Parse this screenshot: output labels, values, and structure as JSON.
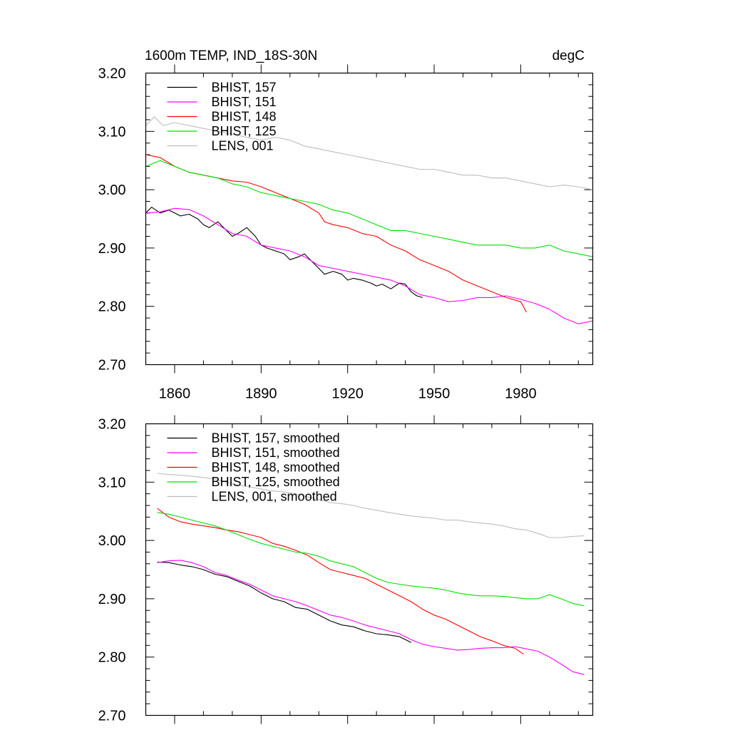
{
  "chart_data": [
    {
      "type": "line",
      "title": "1600m TEMP, IND_18S-30N",
      "units": "degC",
      "xlim": [
        1850,
        2005
      ],
      "ylim": [
        2.7,
        3.2
      ],
      "x_ticks": [
        1860,
        1890,
        1920,
        1950,
        1980
      ],
      "x_tick_labels": [
        "1860",
        "1890",
        "1920",
        "1950",
        "1980"
      ],
      "y_ticks": [
        2.7,
        2.8,
        2.9,
        3.0,
        3.1,
        3.2
      ],
      "y_tick_labels": [
        "2.70",
        "2.80",
        "2.90",
        "3.00",
        "3.10",
        "3.20"
      ],
      "grid": false,
      "legend_position": "top-left",
      "series": [
        {
          "name": "BHIST, 157",
          "color": "#000000",
          "x": [
            1850,
            1852,
            1855,
            1858,
            1860,
            1862,
            1865,
            1868,
            1870,
            1872,
            1875,
            1878,
            1880,
            1882,
            1885,
            1888,
            1890,
            1892,
            1895,
            1898,
            1900,
            1903,
            1905,
            1908,
            1910,
            1912,
            1915,
            1918,
            1920,
            1922,
            1925,
            1928,
            1930,
            1932,
            1935,
            1938,
            1940,
            1942,
            1944,
            1946
          ],
          "y": [
            2.96,
            2.97,
            2.96,
            2.965,
            2.96,
            2.955,
            2.958,
            2.95,
            2.94,
            2.935,
            2.945,
            2.93,
            2.92,
            2.925,
            2.935,
            2.92,
            2.905,
            2.9,
            2.895,
            2.89,
            2.88,
            2.885,
            2.89,
            2.875,
            2.865,
            2.855,
            2.86,
            2.855,
            2.845,
            2.848,
            2.845,
            2.84,
            2.835,
            2.838,
            2.83,
            2.84,
            2.838,
            2.825,
            2.818,
            2.815
          ]
        },
        {
          "name": "BHIST, 151",
          "color": "#ff00ff",
          "x": [
            1850,
            1855,
            1860,
            1865,
            1870,
            1875,
            1880,
            1885,
            1890,
            1895,
            1900,
            1905,
            1910,
            1915,
            1920,
            1925,
            1930,
            1935,
            1940,
            1945,
            1950,
            1955,
            1960,
            1965,
            1970,
            1975,
            1980,
            1985,
            1990,
            1995,
            2000,
            2005
          ],
          "y": [
            2.96,
            2.962,
            2.968,
            2.966,
            2.955,
            2.94,
            2.925,
            2.92,
            2.905,
            2.9,
            2.895,
            2.885,
            2.87,
            2.865,
            2.86,
            2.855,
            2.85,
            2.845,
            2.835,
            2.82,
            2.815,
            2.808,
            2.81,
            2.815,
            2.815,
            2.818,
            2.812,
            2.805,
            2.795,
            2.78,
            2.77,
            2.775
          ]
        },
        {
          "name": "BHIST, 148",
          "color": "#ff0000",
          "x": [
            1850,
            1855,
            1860,
            1865,
            1870,
            1875,
            1880,
            1885,
            1890,
            1895,
            1900,
            1905,
            1910,
            1912,
            1915,
            1920,
            1925,
            1930,
            1935,
            1940,
            1945,
            1950,
            1955,
            1960,
            1965,
            1970,
            1975,
            1980,
            1982
          ],
          "y": [
            3.06,
            3.055,
            3.04,
            3.03,
            3.025,
            3.02,
            3.015,
            3.013,
            3.005,
            2.995,
            2.985,
            2.975,
            2.96,
            2.945,
            2.94,
            2.935,
            2.925,
            2.92,
            2.905,
            2.895,
            2.88,
            2.87,
            2.86,
            2.845,
            2.835,
            2.825,
            2.815,
            2.808,
            2.79
          ]
        },
        {
          "name": "BHIST, 125",
          "color": "#00e000",
          "x": [
            1850,
            1855,
            1860,
            1865,
            1870,
            1875,
            1880,
            1885,
            1890,
            1895,
            1900,
            1905,
            1910,
            1915,
            1920,
            1925,
            1930,
            1935,
            1940,
            1945,
            1950,
            1955,
            1960,
            1965,
            1970,
            1975,
            1980,
            1985,
            1990,
            1995,
            2000,
            2005
          ],
          "y": [
            3.04,
            3.05,
            3.04,
            3.03,
            3.025,
            3.02,
            3.01,
            3.005,
            2.995,
            2.99,
            2.985,
            2.98,
            2.975,
            2.965,
            2.96,
            2.95,
            2.94,
            2.93,
            2.93,
            2.925,
            2.92,
            2.915,
            2.91,
            2.905,
            2.905,
            2.905,
            2.9,
            2.9,
            2.905,
            2.895,
            2.89,
            2.885
          ]
        },
        {
          "name": "LENS, 001",
          "color": "#bdbdbd",
          "x": [
            1850,
            1853,
            1856,
            1860,
            1865,
            1870,
            1875,
            1880,
            1885,
            1890,
            1895,
            1900,
            1905,
            1910,
            1915,
            1920,
            1925,
            1930,
            1935,
            1940,
            1945,
            1950,
            1955,
            1960,
            1965,
            1970,
            1975,
            1980,
            1985,
            1990,
            1995,
            2000,
            2005
          ],
          "y": [
            3.11,
            3.125,
            3.11,
            3.115,
            3.11,
            3.105,
            3.1,
            3.095,
            3.09,
            3.085,
            3.09,
            3.085,
            3.075,
            3.07,
            3.065,
            3.06,
            3.055,
            3.05,
            3.045,
            3.04,
            3.035,
            3.035,
            3.03,
            3.025,
            3.025,
            3.02,
            3.02,
            3.015,
            3.01,
            3.005,
            3.008,
            3.005,
            3.0
          ]
        }
      ]
    },
    {
      "type": "line",
      "title": "",
      "xlim": [
        1850,
        2005
      ],
      "ylim": [
        2.7,
        3.2
      ],
      "x_ticks": [
        1860,
        1890,
        1920,
        1950,
        1980
      ],
      "y_ticks": [
        2.7,
        2.8,
        2.9,
        3.0,
        3.1,
        3.2
      ],
      "y_tick_labels": [
        "2.70",
        "2.80",
        "2.90",
        "3.00",
        "3.10",
        "3.20"
      ],
      "grid": false,
      "legend_position": "top-left",
      "series": [
        {
          "name": "BHIST, 157, smoothed",
          "color": "#000000",
          "x": [
            1854,
            1858,
            1862,
            1866,
            1870,
            1874,
            1878,
            1882,
            1886,
            1890,
            1894,
            1898,
            1902,
            1906,
            1910,
            1914,
            1918,
            1922,
            1926,
            1930,
            1934,
            1938,
            1942
          ],
          "y": [
            2.963,
            2.962,
            2.958,
            2.955,
            2.95,
            2.942,
            2.938,
            2.93,
            2.922,
            2.91,
            2.9,
            2.895,
            2.885,
            2.882,
            2.872,
            2.862,
            2.855,
            2.852,
            2.845,
            2.84,
            2.838,
            2.835,
            2.825
          ]
        },
        {
          "name": "BHIST, 151, smoothed",
          "color": "#ff00ff",
          "x": [
            1854,
            1858,
            1862,
            1866,
            1870,
            1874,
            1878,
            1882,
            1886,
            1890,
            1894,
            1898,
            1902,
            1906,
            1910,
            1914,
            1918,
            1922,
            1926,
            1930,
            1934,
            1938,
            1942,
            1946,
            1950,
            1954,
            1958,
            1962,
            1966,
            1970,
            1974,
            1978,
            1982,
            1986,
            1990,
            1994,
            1998,
            2002
          ],
          "y": [
            2.962,
            2.965,
            2.966,
            2.962,
            2.955,
            2.945,
            2.94,
            2.932,
            2.925,
            2.915,
            2.905,
            2.9,
            2.895,
            2.888,
            2.88,
            2.872,
            2.868,
            2.862,
            2.855,
            2.85,
            2.845,
            2.84,
            2.83,
            2.822,
            2.818,
            2.815,
            2.812,
            2.813,
            2.815,
            2.816,
            2.816,
            2.818,
            2.814,
            2.81,
            2.8,
            2.788,
            2.775,
            2.77
          ]
        },
        {
          "name": "BHIST, 148, smoothed",
          "color": "#ff0000",
          "x": [
            1854,
            1858,
            1862,
            1866,
            1870,
            1874,
            1878,
            1882,
            1886,
            1890,
            1894,
            1898,
            1902,
            1906,
            1910,
            1914,
            1918,
            1922,
            1926,
            1930,
            1934,
            1938,
            1942,
            1946,
            1950,
            1954,
            1958,
            1962,
            1966,
            1970,
            1974,
            1978,
            1981
          ],
          "y": [
            3.055,
            3.04,
            3.032,
            3.028,
            3.025,
            3.022,
            3.018,
            3.015,
            3.01,
            3.005,
            2.995,
            2.99,
            2.983,
            2.975,
            2.962,
            2.95,
            2.945,
            2.94,
            2.935,
            2.925,
            2.915,
            2.905,
            2.895,
            2.882,
            2.872,
            2.865,
            2.855,
            2.845,
            2.835,
            2.828,
            2.82,
            2.815,
            2.805
          ]
        },
        {
          "name": "BHIST, 125, smoothed",
          "color": "#00e000",
          "x": [
            1854,
            1858,
            1862,
            1866,
            1870,
            1874,
            1878,
            1882,
            1886,
            1890,
            1894,
            1898,
            1902,
            1906,
            1910,
            1914,
            1918,
            1922,
            1926,
            1930,
            1934,
            1938,
            1942,
            1946,
            1950,
            1954,
            1958,
            1962,
            1966,
            1970,
            1974,
            1978,
            1982,
            1986,
            1990,
            1994,
            1998,
            2002
          ],
          "y": [
            3.048,
            3.045,
            3.04,
            3.035,
            3.03,
            3.025,
            3.018,
            3.01,
            3.002,
            2.995,
            2.99,
            2.985,
            2.98,
            2.978,
            2.973,
            2.965,
            2.96,
            2.955,
            2.945,
            2.935,
            2.928,
            2.925,
            2.922,
            2.92,
            2.918,
            2.915,
            2.91,
            2.907,
            2.905,
            2.905,
            2.904,
            2.902,
            2.9,
            2.9,
            2.907,
            2.9,
            2.892,
            2.888
          ]
        },
        {
          "name": "LENS, 001, smoothed",
          "color": "#bdbdbd",
          "x": [
            1854,
            1858,
            1862,
            1866,
            1870,
            1874,
            1878,
            1882,
            1886,
            1890,
            1894,
            1898,
            1902,
            1906,
            1910,
            1914,
            1918,
            1922,
            1926,
            1930,
            1934,
            1938,
            1942,
            1946,
            1950,
            1954,
            1958,
            1962,
            1966,
            1970,
            1974,
            1978,
            1982,
            1986,
            1990,
            1994,
            1998,
            2002
          ],
          "y": [
            3.115,
            3.113,
            3.112,
            3.11,
            3.108,
            3.105,
            3.1,
            3.095,
            3.092,
            3.088,
            3.085,
            3.083,
            3.08,
            3.075,
            3.07,
            3.065,
            3.063,
            3.06,
            3.055,
            3.052,
            3.048,
            3.045,
            3.042,
            3.04,
            3.038,
            3.035,
            3.035,
            3.032,
            3.03,
            3.028,
            3.025,
            3.02,
            3.018,
            3.012,
            3.005,
            3.005,
            3.007,
            3.008
          ]
        }
      ]
    }
  ]
}
